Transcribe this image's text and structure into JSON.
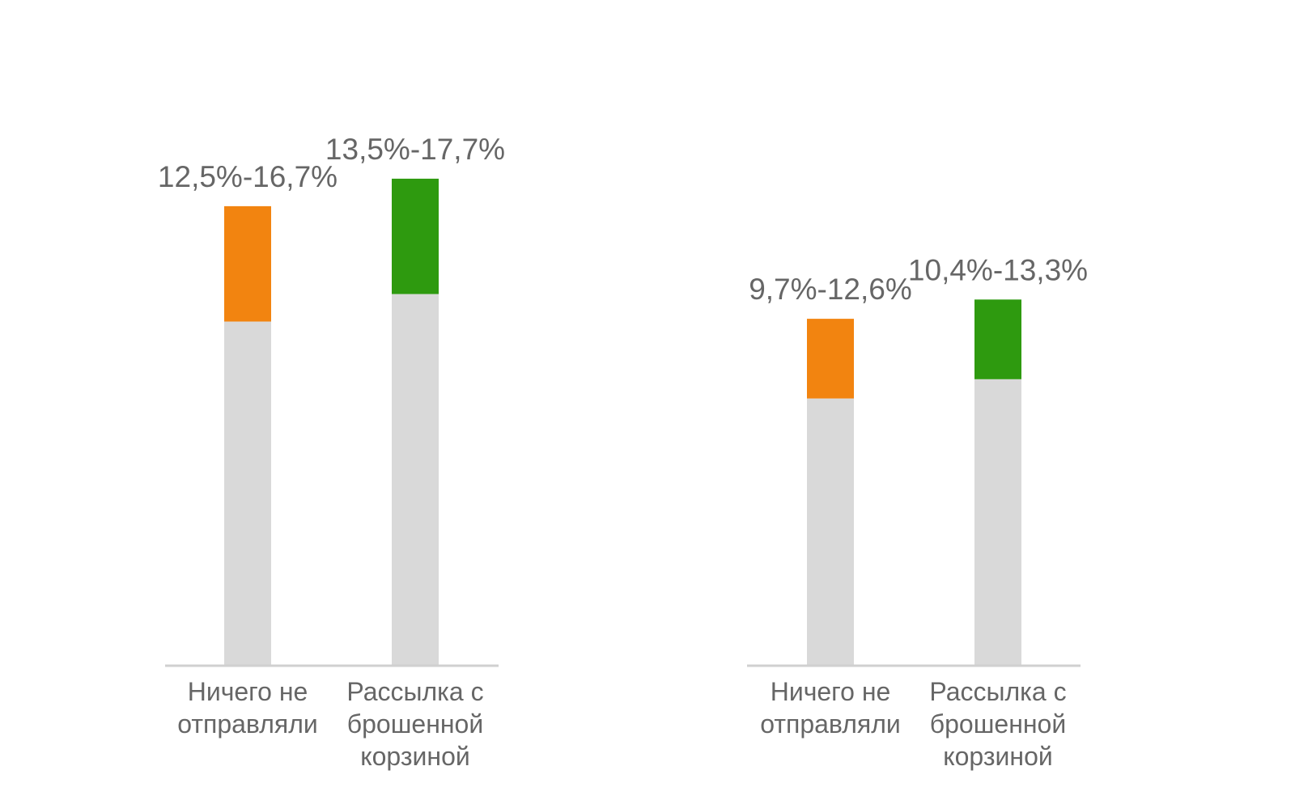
{
  "chart_data": [
    {
      "type": "bar",
      "stacked": true,
      "categories": [
        "Ничего не отправляли",
        "Рассылка с брошенной корзиной"
      ],
      "category_lines": [
        [
          "Ничего не",
          "отправляли"
        ],
        [
          "Рассылка с",
          "брошенной",
          "корзиной"
        ]
      ],
      "range_labels": [
        "12,5%-16,7%",
        "13,5%-17,7%"
      ],
      "series": [
        {
          "values": [
            12.5,
            13.5
          ],
          "color": "#d9d9d9"
        },
        {
          "values": [
            4.2,
            4.2
          ],
          "colors": [
            "#f28410",
            "#2e9a0f"
          ]
        }
      ],
      "ylim": [
        0,
        20.2
      ],
      "grid": false
    },
    {
      "type": "bar",
      "stacked": true,
      "categories": [
        "Ничего не отправляли",
        "Рассылка с брошенной корзиной"
      ],
      "category_lines": [
        [
          "Ничего не",
          "отправляли"
        ],
        [
          "Рассылка с",
          "брошенной",
          "корзиной"
        ]
      ],
      "range_labels": [
        "9,7%-12,6%",
        "10,4%-13,3%"
      ],
      "series": [
        {
          "values": [
            9.7,
            10.4
          ],
          "color": "#d9d9d9"
        },
        {
          "values": [
            2.9,
            2.9
          ],
          "colors": [
            "#f28410",
            "#2e9a0f"
          ]
        }
      ],
      "ylim": [
        0,
        20.2
      ],
      "grid": false
    }
  ]
}
